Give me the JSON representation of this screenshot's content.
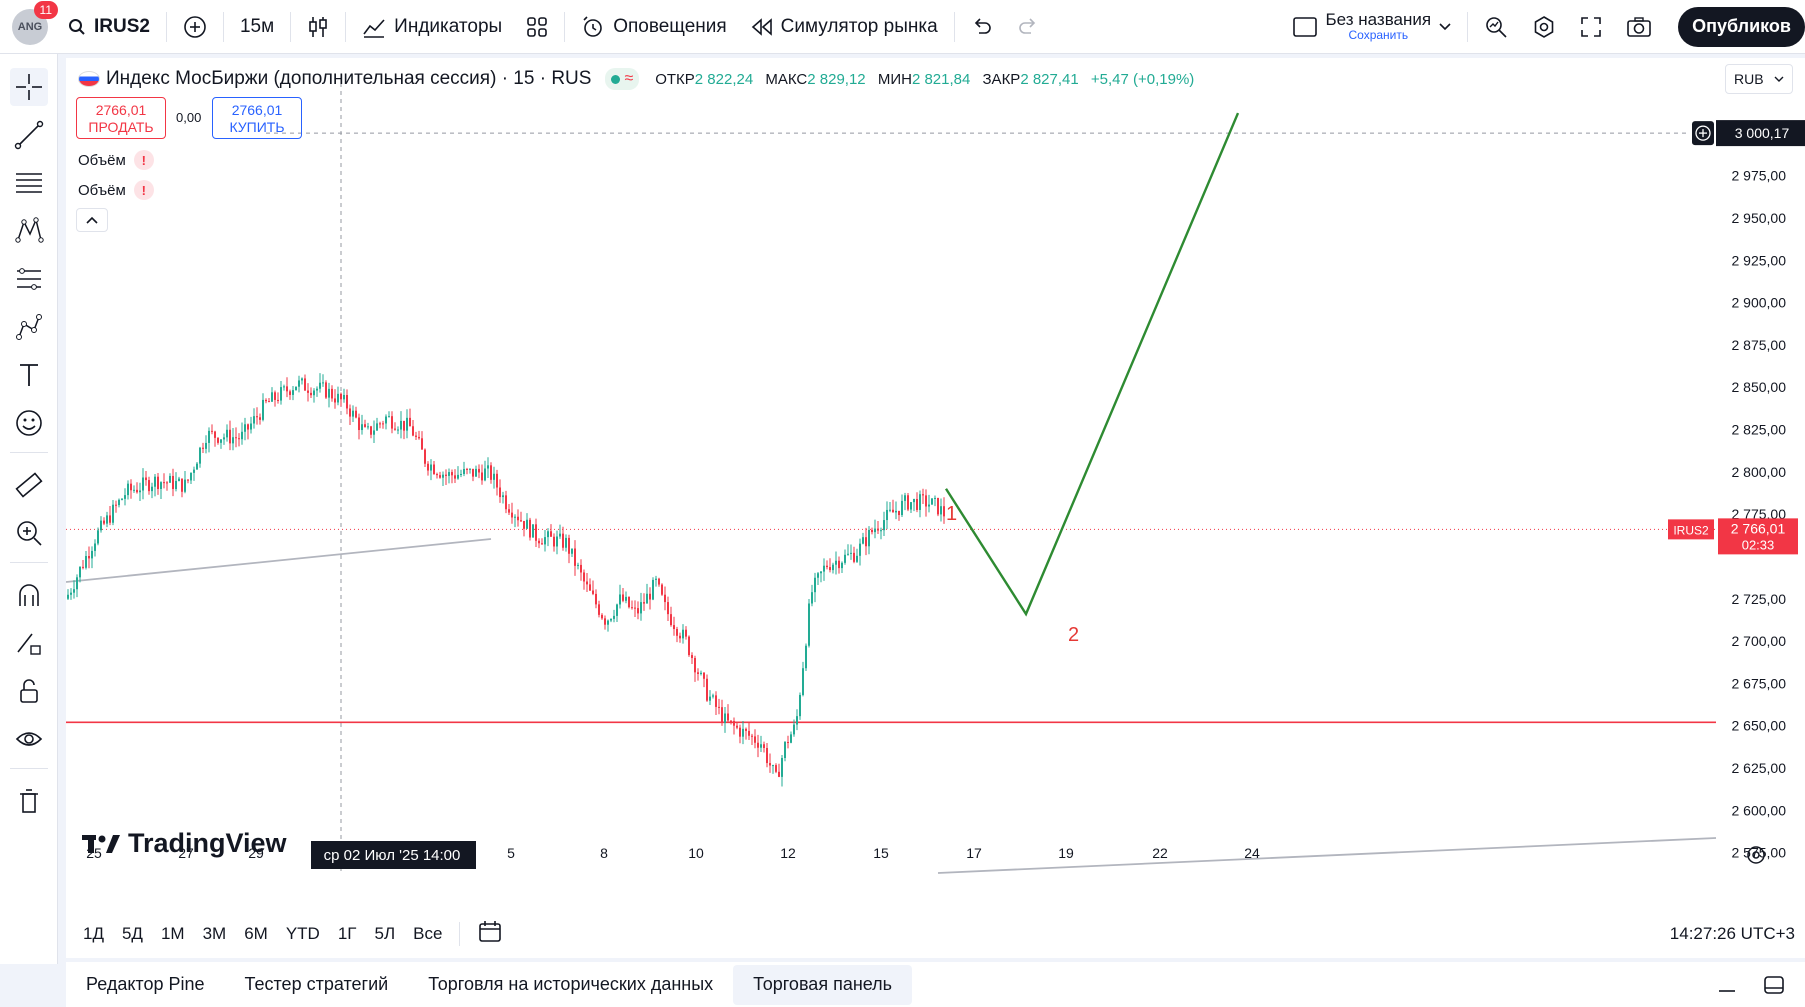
{
  "header": {
    "notif_count": "11",
    "avatar_text": "ANG",
    "symbol": "IRUS2",
    "interval": "15м",
    "indicators_label": "Индикаторы",
    "alerts_label": "Оповещения",
    "replay_label": "Симулятор рынка",
    "layout_name": "Без названия",
    "layout_status": "Сохранить",
    "publish_label": "Опубликов"
  },
  "legend": {
    "title": "Индекс МосБиржи (дополнительная сессия) · 15 · RUS",
    "open_label": "ОТКР",
    "open_value": "2 822,24",
    "high_label": "МАКС",
    "high_value": "2 829,12",
    "low_label": "МИН",
    "low_value": "2 821,84",
    "close_label": "ЗАКР",
    "close_value": "2 827,41",
    "change": "+5,47 (+0,19%)",
    "wave_glyph": "≈"
  },
  "trade": {
    "sell_price": "2766,01",
    "sell_label": "ПРОДАТЬ",
    "spread": "0,00",
    "buy_price": "2766,01",
    "buy_label": "КУПИТЬ"
  },
  "indicators": [
    {
      "label": "Объём",
      "warn": "!"
    },
    {
      "label": "Объём",
      "warn": "!"
    }
  ],
  "currency": "RUB",
  "price_axis": [
    "2 975,00",
    "2 950,00",
    "2 925,00",
    "2 900,00",
    "2 875,00",
    "2 850,00",
    "2 825,00",
    "2 800,00",
    "2 775,00",
    "2 725,00",
    "2 700,00",
    "2 675,00",
    "2 650,00",
    "2 625,00",
    "2 600,00",
    "2 575,00"
  ],
  "crosshair_price": "3 000,17",
  "last_price": {
    "symbol": "IRUS2",
    "price": "2 766,01",
    "countdown": "02:33"
  },
  "date_axis": [
    "25",
    "27",
    "29",
    "5",
    "8",
    "10",
    "12",
    "15",
    "17",
    "19",
    "22",
    "24"
  ],
  "crosshair_date": {
    "date": "ср 02 Июл '25",
    "time": "14:00"
  },
  "annotations": {
    "wave1": "1",
    "wave2": "2"
  },
  "watermark": "TradingView",
  "ranges": [
    "1Д",
    "5Д",
    "1М",
    "3М",
    "6М",
    "YTD",
    "1Г",
    "5Л",
    "Все"
  ],
  "clock": "14:27:26 UTC+3",
  "bottom_tabs": [
    "Редактор Pine",
    "Тестер стратегий",
    "Торговля на исторических данных",
    "Торговая панель"
  ],
  "colors": {
    "up": "#22ab94",
    "down": "#f23645",
    "projection": "#2e8b32",
    "support": "#f23645",
    "accent": "#2962ff"
  },
  "chart_data": {
    "type": "candlestick",
    "series": [
      {
        "name": "IRUS2",
        "x": [
          "25",
          "27",
          "29",
          "02 Июл 14:00",
          "5",
          "8",
          "10",
          "12",
          "15",
          "17"
        ],
        "close": [
          2728,
          2790,
          2825,
          2830,
          2800,
          2760,
          2710,
          2650,
          2720,
          2785
        ]
      }
    ],
    "support_level": 2652,
    "projection": [
      {
        "label": "1",
        "x": "17",
        "y": 2788
      },
      {
        "label": "2",
        "x": "19",
        "y": 2718
      },
      {
        "x": "24",
        "y": 3010
      }
    ],
    "ylim": [
      2560,
      3015
    ]
  }
}
